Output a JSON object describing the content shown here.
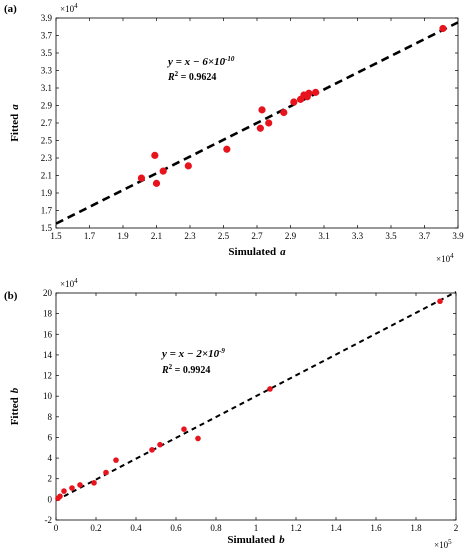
{
  "chart_data": [
    {
      "type": "scatter",
      "panel_label": "(a)",
      "xlabel": "Simulated",
      "xlabel_var": "a",
      "ylabel": "Fitted",
      "ylabel_var": "a",
      "x_multiplier": "×10",
      "x_multiplier_exp": "4",
      "y_multiplier": "×10",
      "y_multiplier_exp": "4",
      "xlim": [
        1.5,
        3.9
      ],
      "ylim": [
        1.5,
        3.9
      ],
      "xticks": [
        "1.5",
        "1.7",
        "1.9",
        "2.1",
        "2.3",
        "2.5",
        "2.7",
        "2.9",
        "3.1",
        "3.3",
        "3.5",
        "3.7",
        "3.9"
      ],
      "yticks": [
        "1.5",
        "1.7",
        "1.9",
        "2.1",
        "2.3",
        "2.5",
        "2.7",
        "2.9",
        "3.1",
        "3.3",
        "3.5",
        "3.7",
        "3.9"
      ],
      "equation": "y = x − 6×10",
      "equation_exp": "-10",
      "r2_label": "R",
      "r2_value": " = 0.9624",
      "fit_line": {
        "x": [
          1.5,
          3.9
        ],
        "y": [
          1.55,
          3.85
        ]
      },
      "points": {
        "x": [
          2.01,
          2.09,
          2.1,
          2.14,
          2.29,
          2.52,
          2.72,
          2.73,
          2.77,
          2.86,
          2.92,
          2.96,
          2.98,
          3.0,
          3.01,
          3.05,
          3.81
        ],
        "y": [
          2.07,
          2.33,
          2.01,
          2.15,
          2.21,
          2.4,
          2.64,
          2.85,
          2.7,
          2.82,
          2.94,
          2.97,
          3.02,
          3.0,
          3.04,
          3.05,
          3.78
        ]
      },
      "point_color": "#e8141d",
      "line_color": "#000000"
    },
    {
      "type": "scatter",
      "panel_label": "(b)",
      "xlabel": "Simulated",
      "xlabel_var": "b",
      "ylabel": "Fitted",
      "ylabel_var": "b",
      "x_multiplier": "×10",
      "x_multiplier_exp": "5",
      "y_multiplier": "×10",
      "y_multiplier_exp": "4",
      "xlim": [
        0,
        2
      ],
      "ylim": [
        -2,
        20
      ],
      "xticks": [
        "0",
        "0.2",
        "0.4",
        "0.6",
        "0.8",
        "1",
        "1.2",
        "1.4",
        "1.6",
        "1.8",
        "2"
      ],
      "yticks": [
        "-2",
        "0",
        "2",
        "4",
        "6",
        "8",
        "10",
        "12",
        "14",
        "16",
        "18",
        "20"
      ],
      "equation": "y = x − 2×10",
      "equation_exp": "-9",
      "r2_label": "R",
      "r2_value": " = 0.9924",
      "fit_line": {
        "x": [
          0,
          2
        ],
        "y": [
          -0.1,
          20.1
        ]
      },
      "points": {
        "x": [
          0.01,
          0.02,
          0.04,
          0.08,
          0.12,
          0.19,
          0.25,
          0.3,
          0.48,
          0.52,
          0.64,
          0.71,
          1.07,
          1.92
        ],
        "y": [
          0.1,
          0.3,
          0.8,
          1.1,
          1.4,
          1.6,
          2.6,
          3.8,
          4.8,
          5.3,
          6.8,
          5.9,
          10.7,
          19.2
        ]
      },
      "point_color": "#e8141d",
      "line_color": "#000000"
    }
  ]
}
